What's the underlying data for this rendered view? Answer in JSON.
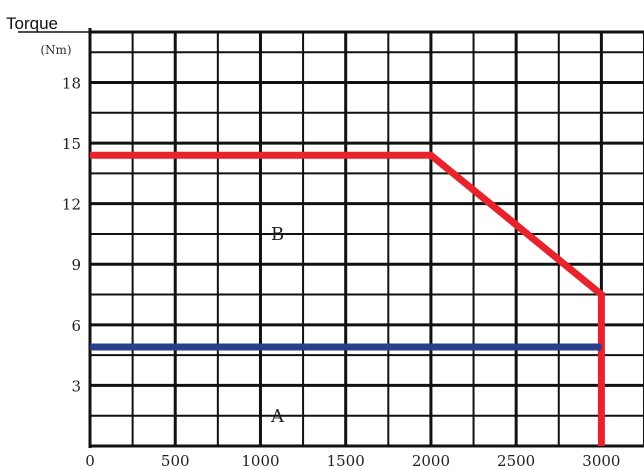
{
  "chart_data": {
    "type": "line",
    "title": "",
    "ylabel": "Torque",
    "yunit": "(Nm)",
    "xlabel": "",
    "xlim": [
      0,
      3250
    ],
    "ylim": [
      0,
      20.5
    ],
    "x_ticks": [
      0,
      500,
      1000,
      1500,
      2000,
      2500,
      3000
    ],
    "y_ticks": [
      3,
      6,
      9,
      12,
      15,
      18
    ],
    "grid": true,
    "series": [
      {
        "name": "",
        "color": "#e8232b",
        "points": [
          [
            0,
            14.4
          ],
          [
            2000,
            14.4
          ],
          [
            3000,
            7.5
          ],
          [
            3000,
            0
          ]
        ]
      },
      {
        "name": "",
        "color": "#2a3f8a",
        "points": [
          [
            0,
            4.9
          ],
          [
            3000,
            4.9
          ]
        ]
      }
    ],
    "annotations": [
      {
        "text": "B",
        "x": 1100,
        "y": 10.2
      },
      {
        "text": "A",
        "x": 1100,
        "y": 1.2
      }
    ]
  }
}
